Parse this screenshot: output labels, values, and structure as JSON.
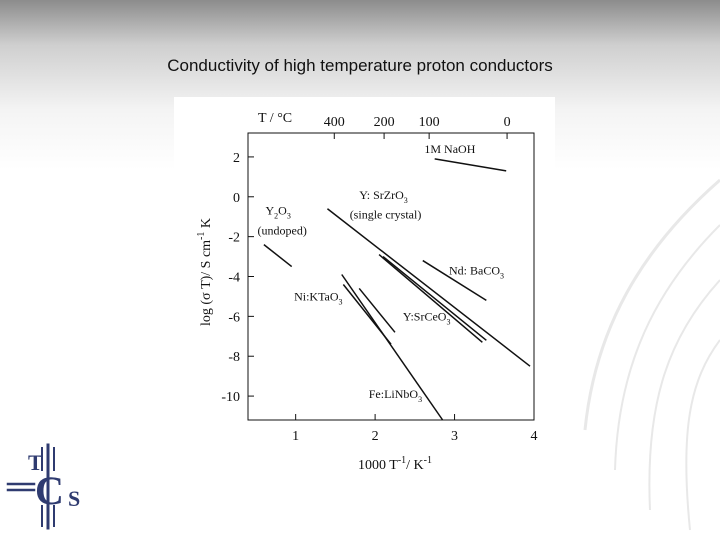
{
  "slide": {
    "title": "Conductivity of high temperature proton conductors"
  },
  "logo": {
    "letters": [
      "T",
      "C",
      "S"
    ],
    "color": "#2f3b70"
  },
  "chart_data": {
    "type": "line",
    "xlabel_base": "1000 T",
    "xlabel_exp": "-1",
    "xlabel_unit": "/ K",
    "xlabel_unit_exp": "-1",
    "ylabel_prefix": "log (",
    "ylabel_sigma": "σ",
    "ylabel_mid": " T)/ S cm",
    "ylabel_exp": "-1",
    "ylabel_suffix": " K",
    "top_axis_label": "T / °C",
    "xlim": [
      0.4,
      4.0
    ],
    "ylim": [
      -11.2,
      3.2
    ],
    "x_ticks": [
      1,
      2,
      3,
      4
    ],
    "y_ticks": [
      2,
      0,
      -2,
      -4,
      -6,
      -8,
      -10
    ],
    "top_ticks": [
      {
        "label": "400",
        "x": 1.486
      },
      {
        "label": "200",
        "x": 2.113
      },
      {
        "label": "100",
        "x": 2.68
      },
      {
        "label": "0",
        "x": 3.661
      }
    ],
    "grid": false,
    "series": [
      {
        "name": "1M NaOH",
        "x": [
          2.75,
          3.65
        ],
        "y": [
          1.9,
          1.3
        ]
      },
      {
        "name": "Y2O3 (undoped)",
        "x": [
          0.6,
          0.95
        ],
        "y": [
          -2.4,
          -3.5
        ]
      },
      {
        "name": "Y: SrZrO3 (single crystal)",
        "x": [
          1.4,
          3.95
        ],
        "y": [
          -0.6,
          -8.5
        ]
      },
      {
        "name": "Nd: BaCO3",
        "x": [
          2.6,
          3.4
        ],
        "y": [
          -3.2,
          -5.2
        ]
      },
      {
        "name": "Y:SrCeO3 (a)",
        "x": [
          2.05,
          3.35
        ],
        "y": [
          -2.9,
          -7.3
        ]
      },
      {
        "name": "Y:SrCeO3 (b)",
        "x": [
          2.1,
          3.4
        ],
        "y": [
          -3.0,
          -7.2
        ]
      },
      {
        "name": "Ni:KTaO3 (a)",
        "x": [
          1.6,
          2.2
        ],
        "y": [
          -4.4,
          -7.4
        ]
      },
      {
        "name": "Ni:KTaO3 (b)",
        "x": [
          1.8,
          2.25
        ],
        "y": [
          -4.6,
          -6.8
        ]
      },
      {
        "name": "Fe:LiNbO3",
        "x": [
          1.58,
          2.85
        ],
        "y": [
          -3.9,
          -11.2
        ]
      }
    ],
    "labels": [
      {
        "key": "naoh",
        "text": "1M NaOH",
        "x": 2.62,
        "y": 2.2
      },
      {
        "key": "y2o3",
        "base": "Y",
        "sub1": "2",
        "mid": "O",
        "sub2": "3",
        "x": 0.62,
        "y": -0.9
      },
      {
        "key": "y2o3b",
        "text": "(undoped)",
        "x": 0.52,
        "y": -1.9
      },
      {
        "key": "srzr",
        "base": "Y: SrZrO",
        "sub": "3",
        "x": 1.8,
        "y": -0.1
      },
      {
        "key": "srzrb",
        "text": "(single crystal)",
        "x": 1.68,
        "y": -1.1
      },
      {
        "key": "ndba",
        "base": "Nd: BaCO",
        "sub": "3",
        "x": 2.93,
        "y": -3.9
      },
      {
        "key": "srce",
        "base": "Y:SrCeO",
        "sub": "3",
        "x": 2.35,
        "y": -6.2
      },
      {
        "key": "kta",
        "base": "Ni:KTaO",
        "sub": "3",
        "x": 0.98,
        "y": -5.2
      },
      {
        "key": "linb",
        "base": "Fe:LiNbO",
        "sub": "3",
        "x": 1.92,
        "y": -10.1
      }
    ]
  }
}
